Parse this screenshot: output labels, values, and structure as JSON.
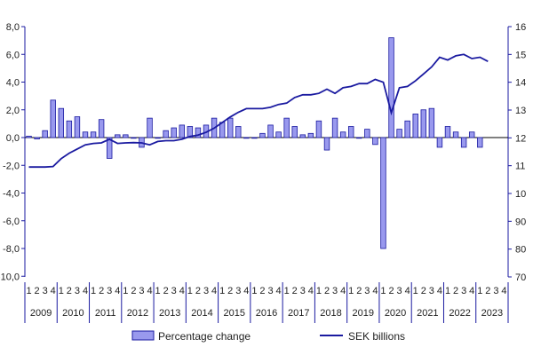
{
  "chart_data": {
    "type": "bar",
    "left_axis": {
      "ylim": [
        -10,
        8
      ],
      "ticks": [
        8,
        6,
        4,
        2,
        0,
        -2,
        -4,
        -6,
        -8,
        -10
      ],
      "tick_labels": [
        "8,0",
        "6,0",
        "4,0",
        "2,0",
        "0,0",
        "-2,0",
        "-4,0",
        "-6,0",
        "-8,0",
        "-10,0"
      ]
    },
    "right_axis": {
      "ylim": [
        70,
        16
      ],
      "note_scale": "linear",
      "ticks": [
        16,
        15,
        14,
        13,
        12,
        11,
        10,
        90,
        80,
        70
      ],
      "tick_labels": [
        "16",
        "15",
        "14",
        "13",
        "12",
        "11",
        "10",
        "90",
        "80",
        "70"
      ]
    },
    "quarters_per_year": [
      "1",
      "2",
      "3",
      "4"
    ],
    "years": [
      "2009",
      "2010",
      "2011",
      "2012",
      "2013",
      "2014",
      "2015",
      "2016",
      "2017",
      "2018",
      "2019",
      "2020",
      "2021",
      "2022",
      "2023"
    ],
    "series": [
      {
        "name": "Percentage change",
        "kind": "bar",
        "color": "#9999ee",
        "values": [
          0.1,
          -0.1,
          0.5,
          2.7,
          2.1,
          1.2,
          1.5,
          0.4,
          0.4,
          1.3,
          -1.5,
          0.2,
          0.2,
          0.0,
          -0.7,
          1.4,
          0.0,
          0.5,
          0.7,
          0.9,
          0.8,
          0.7,
          0.9,
          1.4,
          1.1,
          1.4,
          0.8,
          0.0,
          0.0,
          0.3,
          0.9,
          0.4,
          1.4,
          0.8,
          0.2,
          0.3,
          1.2,
          -0.9,
          1.4,
          0.4,
          0.8,
          0.0,
          0.6,
          -0.5,
          -8.0,
          7.2,
          0.6,
          1.2,
          1.7,
          2.0,
          2.1,
          -0.7,
          0.8,
          0.4,
          -0.7,
          0.4,
          -0.7
        ]
      },
      {
        "name": "SEK billions",
        "kind": "line",
        "color": "#1a1aa0",
        "values": [
          10.95,
          10.95,
          10.95,
          10.97,
          11.25,
          11.45,
          11.6,
          11.75,
          11.8,
          11.82,
          11.95,
          11.8,
          11.82,
          11.83,
          11.82,
          11.75,
          11.87,
          11.9,
          11.9,
          11.95,
          12.05,
          12.1,
          12.2,
          12.35,
          12.55,
          12.75,
          12.92,
          13.05,
          13.05,
          13.05,
          13.1,
          13.2,
          13.25,
          13.45,
          13.55,
          13.55,
          13.6,
          13.75,
          13.6,
          13.8,
          13.85,
          13.95,
          13.95,
          14.1,
          14.0,
          12.9,
          13.8,
          13.85,
          14.05,
          14.3,
          14.55,
          14.9,
          14.8,
          14.95,
          15.0,
          14.85,
          14.9,
          14.75
        ]
      }
    ],
    "legend": [
      "Percentage change",
      "SEK billions"
    ],
    "legend_position": "bottom",
    "grid": false
  }
}
